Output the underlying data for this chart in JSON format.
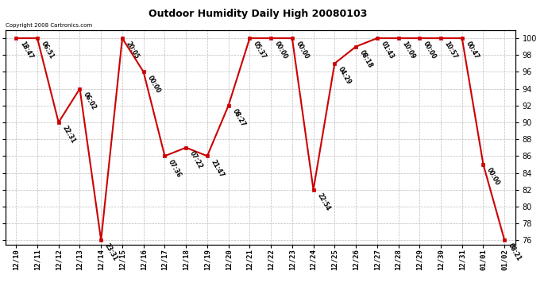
{
  "title": "Outdoor Humidity Daily High 20080103",
  "copyright": "Copyright 2008 Cartronics.com",
  "ylim": [
    75.5,
    101
  ],
  "yticks": [
    76,
    78,
    80,
    82,
    84,
    86,
    88,
    90,
    92,
    94,
    96,
    98,
    100
  ],
  "background_color": "#ffffff",
  "grid_color": "#bbbbbb",
  "line_color": "#cc0000",
  "marker_color": "#cc0000",
  "fig_width": 6.9,
  "fig_height": 3.75,
  "points": [
    {
      "date": "12/10",
      "value": 100,
      "label": "18:47"
    },
    {
      "date": "12/11",
      "value": 100,
      "label": "06:51"
    },
    {
      "date": "12/12",
      "value": 90,
      "label": "22:31"
    },
    {
      "date": "12/13",
      "value": 94,
      "label": "06:02"
    },
    {
      "date": "12/14",
      "value": 76,
      "label": "23:31"
    },
    {
      "date": "12/15",
      "value": 100,
      "label": "20:05"
    },
    {
      "date": "12/16",
      "value": 96,
      "label": "00:00"
    },
    {
      "date": "12/17",
      "value": 86,
      "label": "07:36"
    },
    {
      "date": "12/18",
      "value": 87,
      "label": "07:22"
    },
    {
      "date": "12/19",
      "value": 86,
      "label": "21:47"
    },
    {
      "date": "12/20",
      "value": 92,
      "label": "08:27"
    },
    {
      "date": "12/21",
      "value": 100,
      "label": "05:37"
    },
    {
      "date": "12/22",
      "value": 100,
      "label": "00:00"
    },
    {
      "date": "12/23",
      "value": 100,
      "label": "00:00"
    },
    {
      "date": "12/24",
      "value": 82,
      "label": "22:54"
    },
    {
      "date": "12/25",
      "value": 97,
      "label": "04:29"
    },
    {
      "date": "12/26",
      "value": 99,
      "label": "08:18"
    },
    {
      "date": "12/27",
      "value": 100,
      "label": "01:43"
    },
    {
      "date": "12/28",
      "value": 100,
      "label": "10:09"
    },
    {
      "date": "12/29",
      "value": 100,
      "label": "00:00"
    },
    {
      "date": "12/30",
      "value": 100,
      "label": "10:57"
    },
    {
      "date": "12/31",
      "value": 100,
      "label": "00:47"
    },
    {
      "date": "01/01",
      "value": 85,
      "label": "00:00"
    },
    {
      "date": "01/02",
      "value": 76,
      "label": "08:21"
    }
  ]
}
